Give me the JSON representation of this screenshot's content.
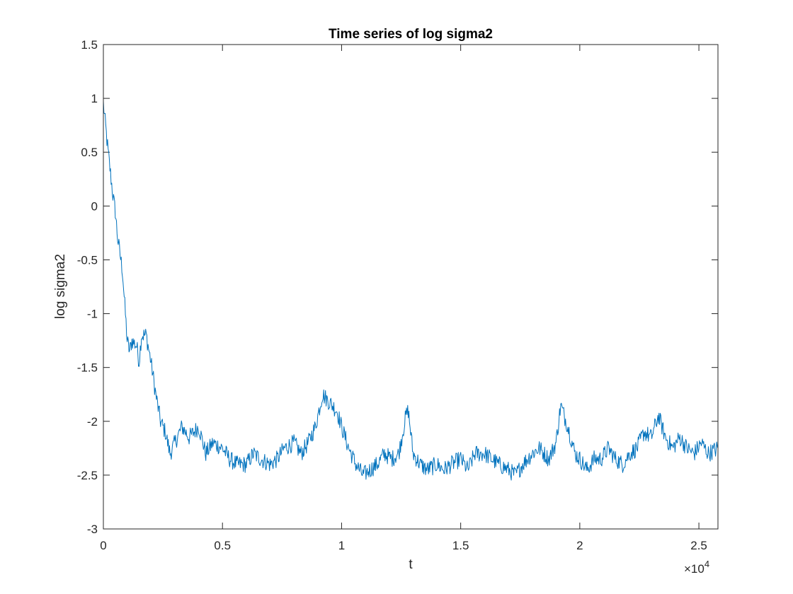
{
  "chart_data": {
    "type": "line",
    "title": "Time series of log sigma2",
    "xlabel": "t",
    "ylabel": "log sigma2",
    "xlim": [
      0,
      25800
    ],
    "ylim": [
      -3,
      1.5
    ],
    "x_ticks": [
      0,
      5000,
      10000,
      15000,
      20000,
      25000
    ],
    "x_tick_labels": [
      "0",
      "0.5",
      "1",
      "1.5",
      "2",
      "2.5"
    ],
    "x_exponent_label": {
      "base": "×10",
      "power": "4"
    },
    "y_ticks": [
      1.5,
      1,
      0.5,
      0,
      -0.5,
      -1,
      -1.5,
      -2,
      -2.5,
      -3
    ],
    "y_tick_labels": [
      "1.5",
      "1",
      "0.5",
      "0",
      "-0.5",
      "-1",
      "-1.5",
      "-2",
      "-2.5",
      "-3"
    ],
    "grid": false,
    "series": [
      {
        "color": "#0072BD",
        "x": [
          0,
          200,
          400,
          500,
          600,
          800,
          1000,
          1100,
          1200,
          1400,
          1500,
          1600,
          1800,
          2000,
          2200,
          2400,
          2600,
          2800,
          3000,
          3300,
          3600,
          4000,
          4300,
          4600,
          5000,
          5300,
          5600,
          6000,
          6300,
          6600,
          7000,
          7300,
          7600,
          8000,
          8300,
          8600,
          8900,
          9200,
          9400,
          9600,
          9800,
          10000,
          10300,
          10600,
          10900,
          11200,
          11500,
          11800,
          12100,
          12400,
          12700,
          12800,
          13000,
          13300,
          13600,
          14000,
          14300,
          14600,
          15000,
          15300,
          15600,
          16000,
          16300,
          16600,
          17000,
          17300,
          17600,
          18000,
          18300,
          18700,
          19000,
          19200,
          19500,
          19800,
          20000,
          20300,
          20600,
          20900,
          21200,
          21500,
          21800,
          22100,
          22400,
          22700,
          23000,
          23300,
          23600,
          23900,
          24200,
          24500,
          24800,
          25100,
          25400,
          25800
        ],
        "y": [
          0.95,
          0.5,
          0.1,
          -0.05,
          -0.3,
          -0.6,
          -1.25,
          -1.35,
          -1.25,
          -1.3,
          -1.45,
          -1.2,
          -1.2,
          -1.45,
          -1.75,
          -2.0,
          -2.1,
          -2.3,
          -2.2,
          -2.05,
          -2.15,
          -2.05,
          -2.3,
          -2.2,
          -2.25,
          -2.35,
          -2.4,
          -2.4,
          -2.3,
          -2.35,
          -2.4,
          -2.35,
          -2.25,
          -2.2,
          -2.3,
          -2.2,
          -2.05,
          -1.75,
          -1.8,
          -1.85,
          -1.9,
          -2.05,
          -2.25,
          -2.4,
          -2.5,
          -2.45,
          -2.4,
          -2.3,
          -2.35,
          -2.3,
          -1.95,
          -1.9,
          -2.3,
          -2.4,
          -2.45,
          -2.4,
          -2.45,
          -2.4,
          -2.35,
          -2.45,
          -2.3,
          -2.3,
          -2.35,
          -2.4,
          -2.45,
          -2.5,
          -2.4,
          -2.3,
          -2.25,
          -2.35,
          -2.2,
          -1.85,
          -2.05,
          -2.3,
          -2.35,
          -2.45,
          -2.35,
          -2.35,
          -2.25,
          -2.35,
          -2.4,
          -2.3,
          -2.25,
          -2.1,
          -2.15,
          -1.95,
          -2.15,
          -2.25,
          -2.15,
          -2.25,
          -2.3,
          -2.2,
          -2.3,
          -2.25
        ]
      }
    ]
  }
}
